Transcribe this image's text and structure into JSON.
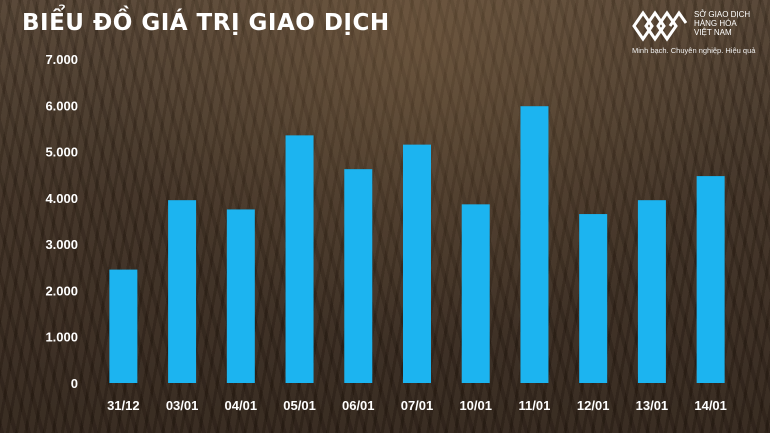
{
  "page": {
    "title": "BIỂU ĐỒ GIÁ TRỊ GIAO DỊCH"
  },
  "logo": {
    "name_lines": [
      "SỞ GIAO DỊCH",
      "HÀNG HÓA",
      "VIỆT NAM"
    ],
    "slogan": "Minh bạch. Chuyên nghiệp. Hiệu quả",
    "icon": "diamond-lattice-logo-icon",
    "color": "#ffffff"
  },
  "chart_data": {
    "type": "bar",
    "categories": [
      "31/12",
      "03/01",
      "04/01",
      "05/01",
      "06/01",
      "07/01",
      "10/01",
      "11/01",
      "12/01",
      "13/01",
      "14/01"
    ],
    "values": [
      2450,
      3950,
      3750,
      5350,
      4620,
      5150,
      3860,
      5980,
      3650,
      3950,
      4470
    ],
    "ylim": [
      0,
      7000
    ],
    "yticks": [
      0,
      1000,
      2000,
      3000,
      4000,
      5000,
      6000,
      7000
    ],
    "ytick_labels": [
      "0",
      "1.000",
      "2.000",
      "3.000",
      "4.000",
      "5.000",
      "6.000",
      "7.000"
    ],
    "bar_color": "#1cb4f0",
    "grid": false,
    "legend": "none"
  }
}
